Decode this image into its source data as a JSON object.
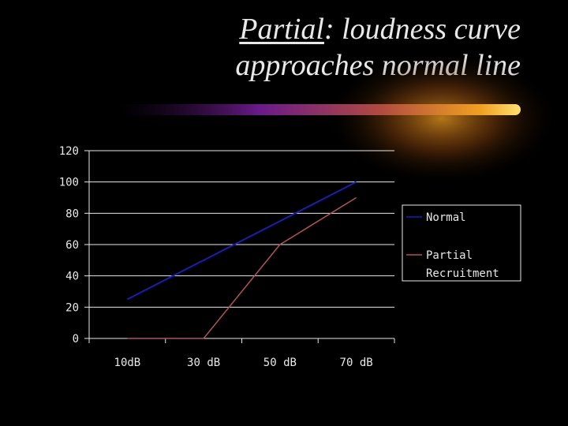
{
  "slide": {
    "title_lead": "Partial",
    "title_rest": ": loudness curve approaches normal line"
  },
  "colors": {
    "background": "#000000",
    "text": "#e8e8e8",
    "axis": "#e8e8e8",
    "normal_series": "#1c1cb4",
    "partial_series": "#b05060",
    "accent_orange": "#f0a020",
    "accent_purple": "#6a1a8a"
  },
  "chart_data": {
    "type": "line",
    "title": "",
    "xlabel": "",
    "ylabel": "",
    "categories": [
      "10dB",
      "30 dB",
      "50 dB",
      "70 dB"
    ],
    "ylim": [
      0,
      120
    ],
    "yticks": [
      0,
      20,
      40,
      60,
      80,
      100,
      120
    ],
    "grid": true,
    "legend_position": "right",
    "series": [
      {
        "name": "Normal",
        "values": [
          25,
          50,
          75,
          100
        ],
        "color": "#1c1cb4"
      },
      {
        "name": "Partial Recruitment",
        "legend_lines": [
          "Partial",
          "Recruitment"
        ],
        "values": [
          0,
          0,
          60,
          90
        ],
        "color": "#b05060"
      }
    ]
  }
}
